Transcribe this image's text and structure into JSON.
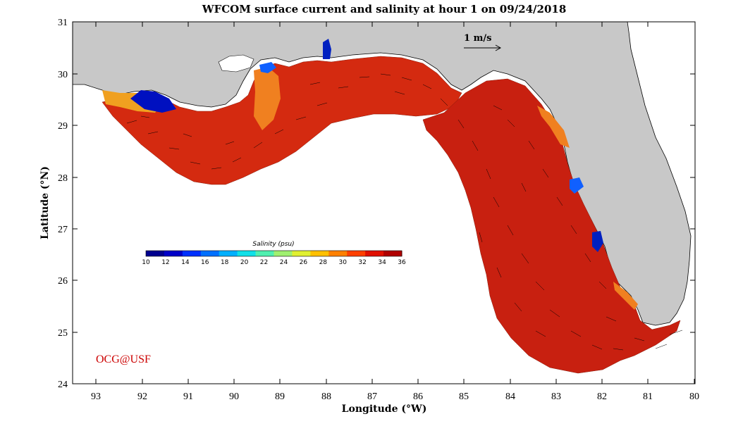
{
  "title": "WFCOM surface current and salinity at hour 1 on 09/24/2018",
  "x_axis": {
    "label": "Longitude (°W)",
    "ticks": [
      "93",
      "92",
      "91",
      "90",
      "89",
      "88",
      "87",
      "86",
      "85",
      "84",
      "83",
      "82",
      "81",
      "80"
    ]
  },
  "y_axis": {
    "label": "Latitude (°N)",
    "ticks": [
      "31",
      "30",
      "29",
      "28",
      "27",
      "26",
      "25",
      "24"
    ]
  },
  "colorbar": {
    "title": "Salinity (psu)",
    "ticks": [
      "10",
      "12",
      "14",
      "16",
      "18",
      "20",
      "22",
      "24",
      "26",
      "28",
      "30",
      "32",
      "34",
      "36"
    ],
    "colors": [
      "#00008f",
      "#0000c8",
      "#0030ff",
      "#0070ff",
      "#00b0ff",
      "#10e0e8",
      "#50f0b0",
      "#a0f070",
      "#e0f030",
      "#ffc000",
      "#ff8000",
      "#ff4000",
      "#e01000",
      "#b00000"
    ]
  },
  "scale_arrow": {
    "label": "1 m/s"
  },
  "credit": "OCG@USF",
  "colors": {
    "land": "#c8c8c8",
    "ocean_salinity_main": "#d42a10",
    "ocean_salinity_coast": "#f06010",
    "fresh_water": "#0000c0"
  }
}
